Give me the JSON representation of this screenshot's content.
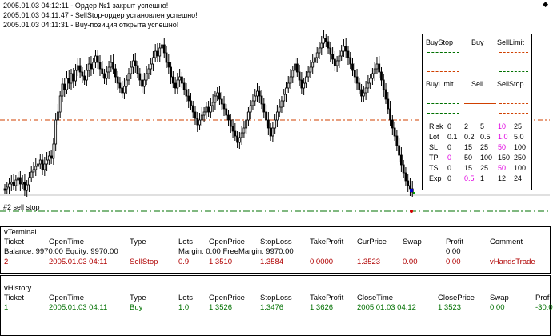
{
  "log": [
    "2005.01.03 04:12:11  -  Ордер №1 закрыт успешно!",
    "2005.01.03 04:11:47  -  SellStop-ордер установлен успешно!",
    "2005.01.03 04:11:31  -  Buy-позиция открыта успешно!"
  ],
  "chart_label": "#2 sell stop",
  "panel": {
    "row1": [
      "BuyStop",
      "Buy",
      "SellLimit"
    ],
    "row2": [
      "BuyLimit",
      "Sell",
      "SellStop"
    ],
    "params": [
      {
        "name": "Risk",
        "v": [
          "0",
          "2",
          "5",
          "10",
          "25"
        ],
        "hl": 3
      },
      {
        "name": "Lot",
        "v": [
          "0.1",
          "0.2",
          "0.5",
          "1.0",
          "5.0"
        ],
        "hl": 3
      },
      {
        "name": "SL",
        "v": [
          "0",
          "15",
          "25",
          "50",
          "100"
        ],
        "hl": 3
      },
      {
        "name": "TP",
        "v": [
          "0",
          "50",
          "100",
          "150",
          "250"
        ],
        "hl": 0
      },
      {
        "name": "TS",
        "v": [
          "0",
          "15",
          "25",
          "50",
          "100"
        ],
        "hl": 3
      },
      {
        "name": "Exp",
        "v": [
          "0",
          "0.5",
          "1",
          "12",
          "24"
        ],
        "hl": 1
      }
    ]
  },
  "terminal": {
    "title": "vTerminal",
    "headers": [
      "Ticket",
      "OpenTime",
      "Type",
      "Lots",
      "OpenPrice",
      "StopLoss",
      "TakeProfit",
      "CurPrice",
      "Swap",
      "Profit",
      "Comment"
    ],
    "summary": "Balance: 9970.00  Equity: 9970.00",
    "summary2": "Margin: 0.00  FreeMargin: 9970.00",
    "summary_profit": "0.00",
    "row": [
      "2",
      "2005.01.03 04:11",
      "SellStop",
      "0.9",
      "1.3510",
      "1.3584",
      "0.0000",
      "1.3523",
      "0.00",
      "0.00",
      "vHandsTrade"
    ]
  },
  "history": {
    "title": "vHistory",
    "headers": [
      "Ticket",
      "OpenTime",
      "Type",
      "Lots",
      "OpenPrice",
      "StopLoss",
      "TakeProfit",
      "CloseTime",
      "ClosePrice",
      "Swap",
      "Prof"
    ],
    "row": [
      "1",
      "2005.01.03 04:11",
      "Buy",
      "1.0",
      "1.3526",
      "1.3476",
      "1.3626",
      "2005.01.03 04:12",
      "1.3523",
      "0.00",
      "-30.0"
    ]
  },
  "colors": {
    "red": "#b00000",
    "green": "#007000",
    "magenta": "#e000e0",
    "orange_line": "#d04000"
  }
}
